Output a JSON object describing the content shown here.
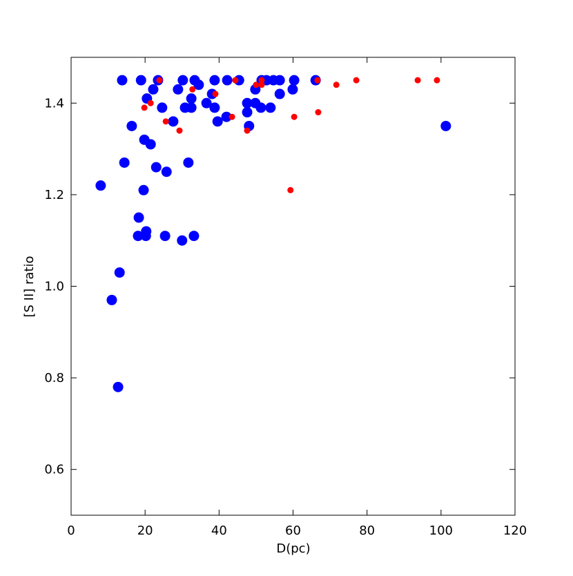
{
  "chart_data": {
    "type": "scatter",
    "xlabel": "D(pc)",
    "ylabel": "[S II] ratio",
    "xlim": [
      0,
      120
    ],
    "ylim": [
      0.5,
      1.5
    ],
    "xticks": [
      0,
      20,
      40,
      60,
      80,
      100,
      120
    ],
    "yticks": [
      0.6,
      0.8,
      {
        "value": 1.0,
        "label": "1.0"
      },
      1.2,
      1.4
    ],
    "series": [
      {
        "color": "#0000ff",
        "x": [
          13.8,
          18.9,
          23.5,
          30.2,
          33.4,
          38.8,
          42.2,
          45.4,
          51.5,
          52.8,
          54.7,
          56.4,
          60.3,
          66.1,
          20.5,
          22.2,
          24.6,
          27.6,
          28.9,
          30.8,
          32.5,
          32.5,
          34.5,
          36.6,
          38.1,
          38.8,
          39.6,
          42.0,
          47.6,
          47.6,
          48.1,
          49.8,
          49.8,
          51.3,
          53.9,
          56.4,
          59.9,
          16.4,
          19.8,
          21.5,
          14.4,
          31.7,
          23.0,
          25.8,
          8.0,
          19.6,
          18.3,
          20.3,
          18.1,
          20.2,
          25.4,
          30.0,
          33.2,
          13.1,
          11.0,
          12.7,
          101.3
        ],
        "values": [
          1.45,
          1.45,
          1.45,
          1.45,
          1.45,
          1.45,
          1.45,
          1.45,
          1.45,
          1.45,
          1.45,
          1.45,
          1.45,
          1.45,
          1.41,
          1.43,
          1.39,
          1.36,
          1.43,
          1.39,
          1.41,
          1.39,
          1.44,
          1.4,
          1.42,
          1.39,
          1.36,
          1.37,
          1.4,
          1.38,
          1.35,
          1.43,
          1.4,
          1.39,
          1.39,
          1.42,
          1.43,
          1.35,
          1.32,
          1.31,
          1.27,
          1.27,
          1.26,
          1.25,
          1.22,
          1.21,
          1.15,
          1.12,
          1.11,
          1.11,
          1.11,
          1.1,
          1.11,
          1.03,
          0.97,
          0.78,
          1.35
        ]
      },
      {
        "color": "#ff0000",
        "x": [
          23.9,
          19.8,
          21.5,
          25.6,
          29.3,
          32.8,
          39.0,
          43.5,
          44.4,
          47.6,
          50.0,
          51.5,
          51.5,
          60.3,
          59.3,
          66.8,
          66.6,
          71.7,
          77.1,
          93.7,
          98.9
        ],
        "values": [
          1.45,
          1.39,
          1.4,
          1.36,
          1.34,
          1.43,
          1.42,
          1.37,
          1.45,
          1.34,
          1.44,
          1.45,
          1.44,
          1.37,
          1.21,
          1.38,
          1.45,
          1.44,
          1.45,
          1.45,
          1.45
        ]
      }
    ]
  }
}
